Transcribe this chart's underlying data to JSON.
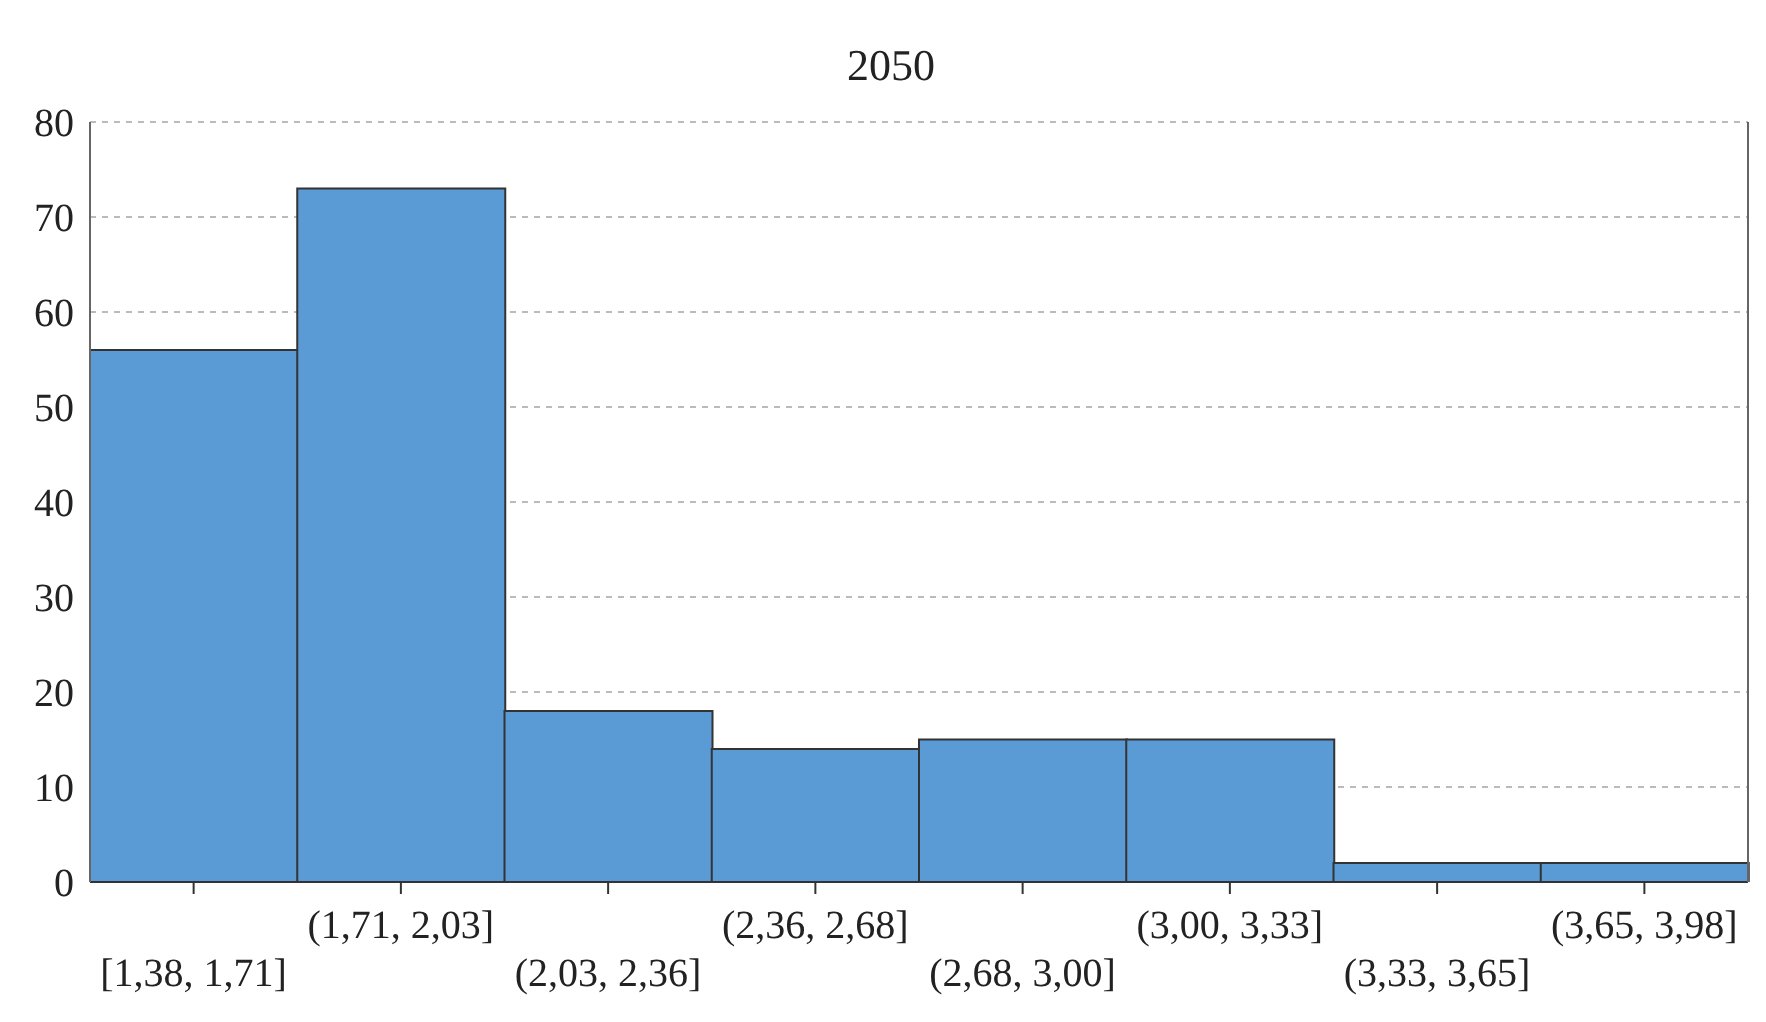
{
  "chart_data": {
    "type": "bar",
    "title": "2050",
    "categories": [
      "[1,38, 1,71]",
      "(1,71, 2,03]",
      "(2,03, 2,36]",
      "(2,36, 2,68]",
      "(2,68, 3,00]",
      "(3,00, 3,33]",
      "(3,33, 3,65]",
      "(3,65, 3,98]"
    ],
    "values": [
      56,
      73,
      18,
      14,
      15,
      15,
      2,
      2
    ],
    "color": "#5b9bd5",
    "ylim": [
      0,
      80
    ],
    "yticks": [
      0,
      10,
      20,
      30,
      40,
      50,
      60,
      70,
      80
    ],
    "grid": "y"
  }
}
